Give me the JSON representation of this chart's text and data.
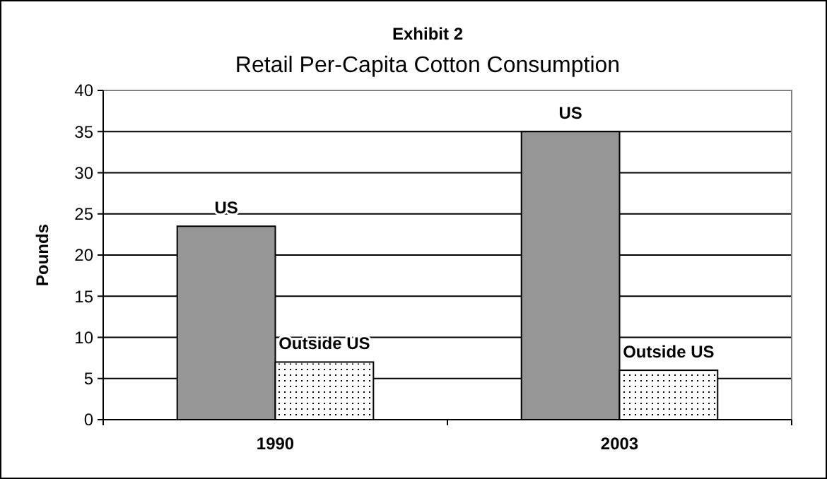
{
  "chart_data": {
    "type": "bar",
    "subtitle": "Exhibit 2",
    "title": "Retail Per-Capita Cotton Consumption",
    "ylabel": "Pounds",
    "categories": [
      "1990",
      "2003"
    ],
    "series": [
      {
        "name": "US",
        "color": "#969696",
        "values": [
          23.5,
          35
        ]
      },
      {
        "name": "Outside US",
        "color": "#ffffff",
        "values": [
          7,
          6
        ]
      }
    ],
    "ylim": [
      0,
      40
    ],
    "yticks": [
      0,
      5,
      10,
      15,
      20,
      25,
      30,
      35,
      40
    ],
    "grid": "y"
  }
}
